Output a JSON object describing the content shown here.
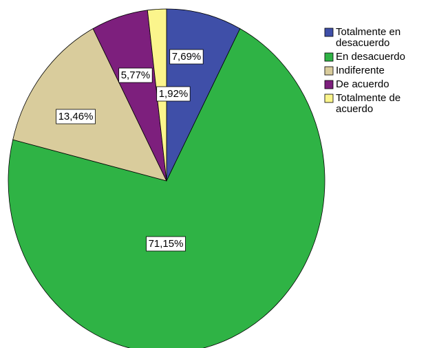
{
  "chart_data": {
    "type": "pie",
    "title": "",
    "legend_position": "top-right",
    "slices": [
      {
        "name": "Totalmente en desacuerdo",
        "legend_lines": [
          "Totalmente en",
          "desacuerdo"
        ],
        "value": 7.69,
        "label": "7,69%",
        "color": "#3f4fa8"
      },
      {
        "name": "En desacuerdo",
        "legend_lines": [
          "En desacuerdo"
        ],
        "value": 71.15,
        "label": "71,15%",
        "color": "#2fb345"
      },
      {
        "name": "Indiferente",
        "legend_lines": [
          "Indiferente"
        ],
        "value": 13.46,
        "label": "13,46%",
        "color": "#d9cc9c"
      },
      {
        "name": "De acuerdo",
        "legend_lines": [
          "De acuerdo"
        ],
        "value": 5.77,
        "label": "5,77%",
        "color": "#7d1f7d"
      },
      {
        "name": "Totalmente de acuerdo",
        "legend_lines": [
          "Totalmente de",
          "acuerdo"
        ],
        "value": 1.92,
        "label": "1,92%",
        "color": "#fbf58c"
      }
    ]
  }
}
